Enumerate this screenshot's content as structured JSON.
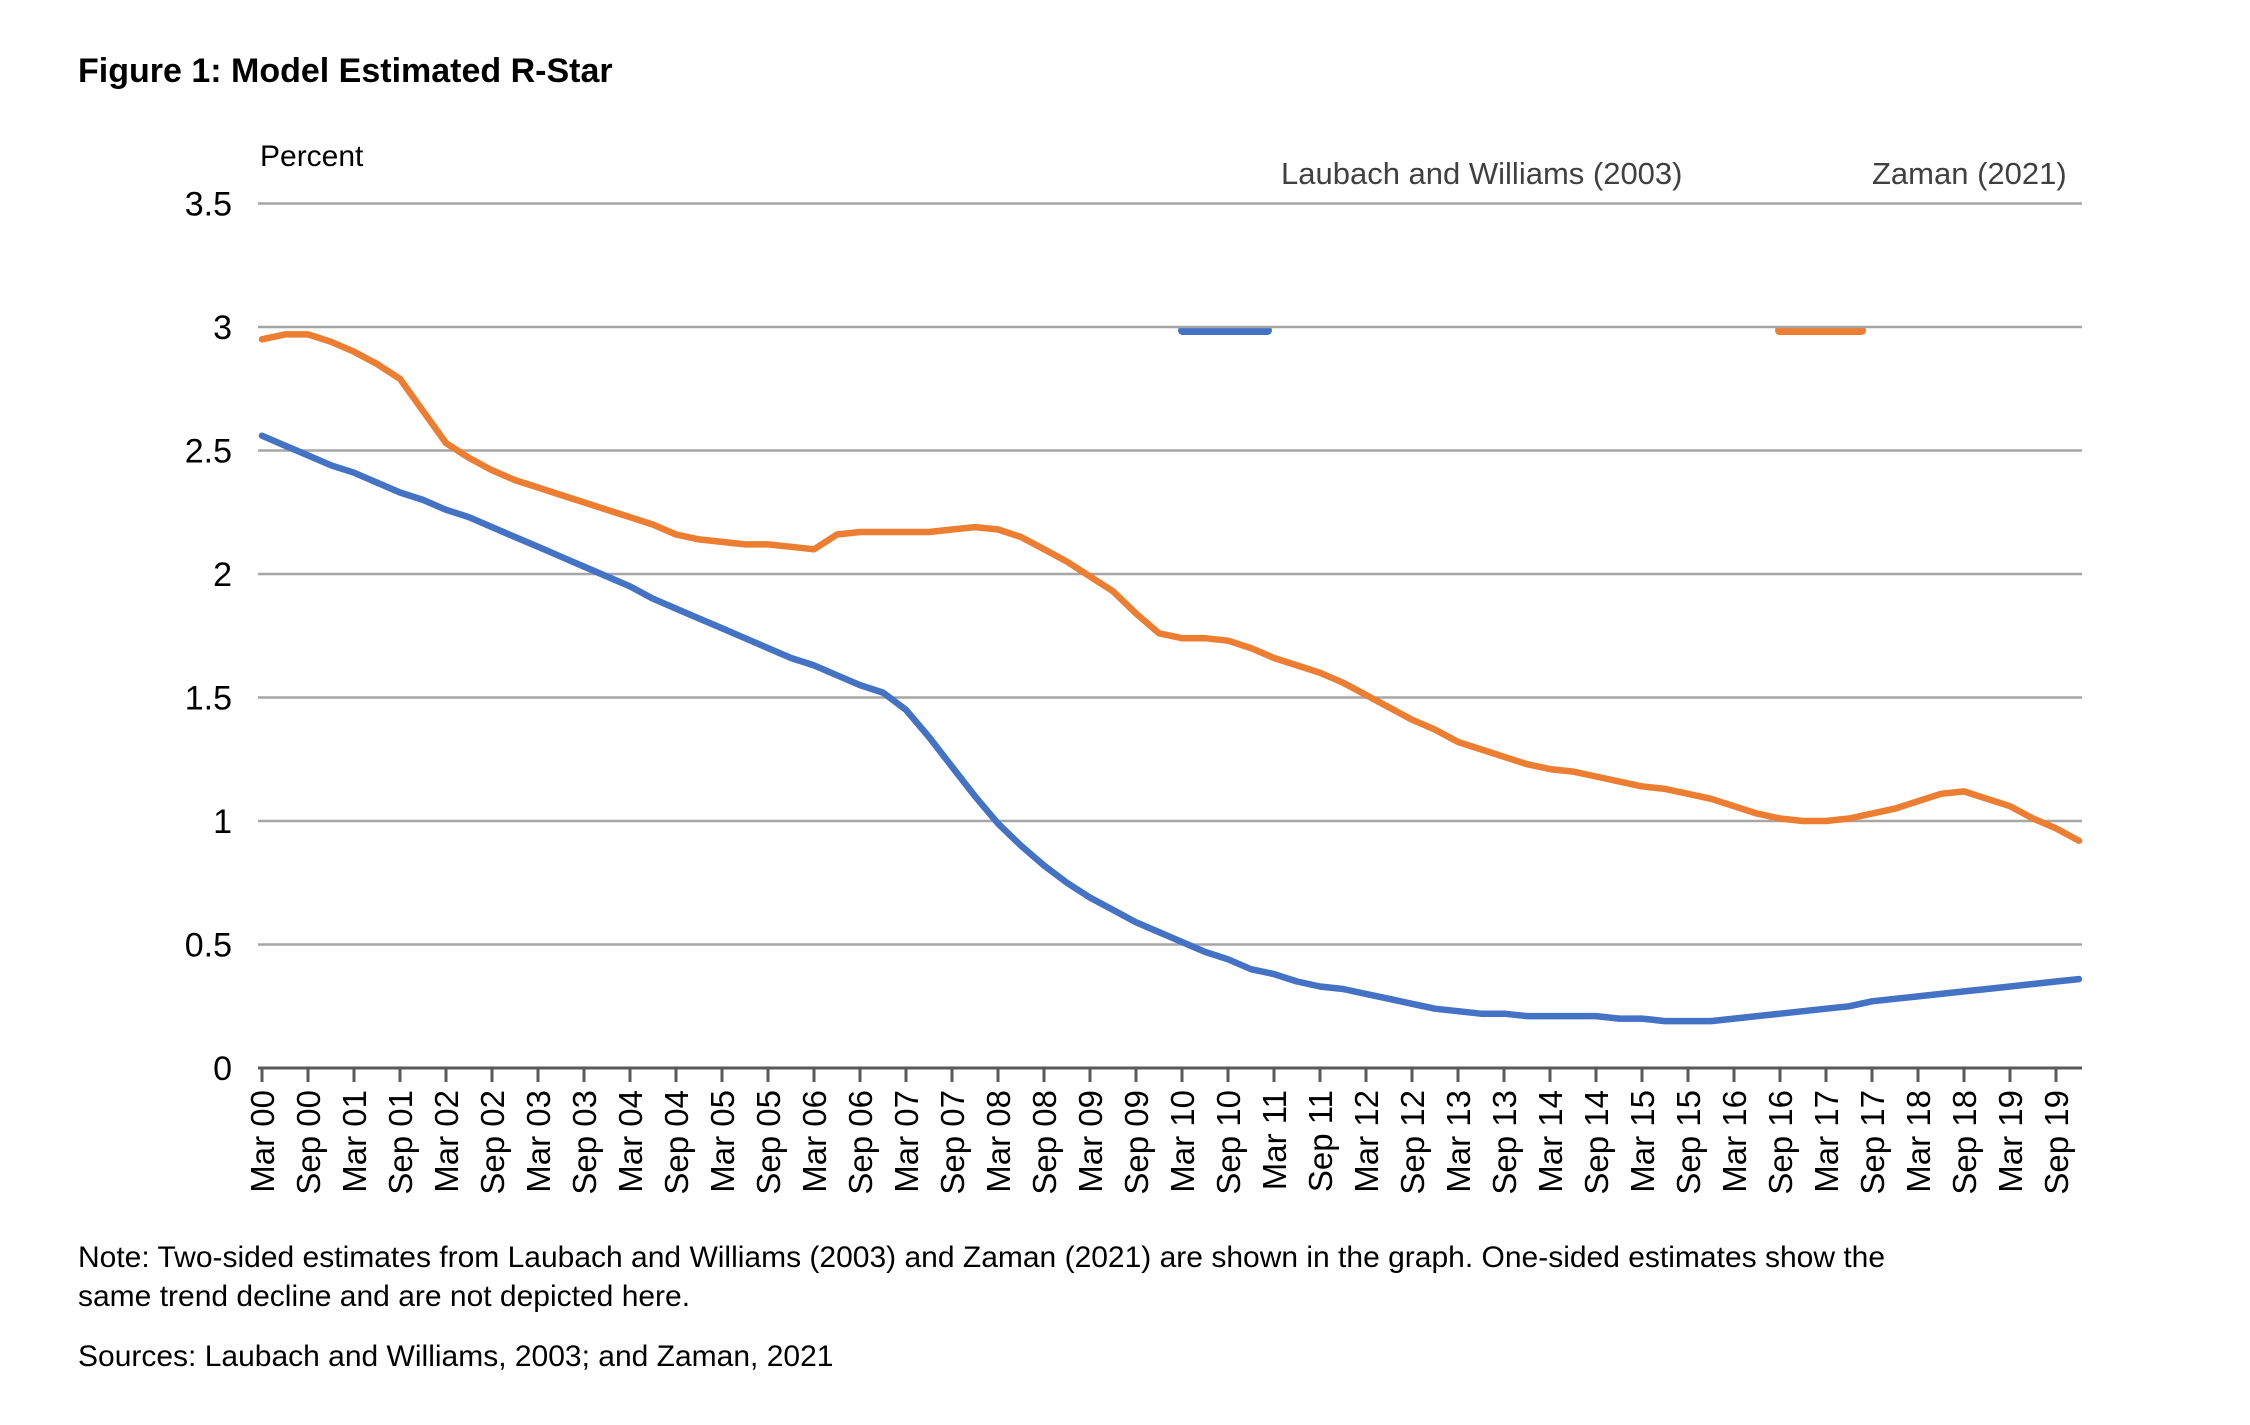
{
  "title": "Figure 1: Model Estimated R-Star",
  "note": "Note: Two-sided estimates from Laubach and Williams (2003) and Zaman (2021) are shown in the graph. One-sided estimates show the same trend decline and are not depicted here.",
  "sources": "Sources: Laubach and Williams, 2003; and Zaman, 2021",
  "chart_data": {
    "type": "line",
    "title": "Figure 1: Model Estimated R-Star",
    "ylabel": "Percent",
    "xlabel": "",
    "ylim": [
      0,
      3.5
    ],
    "y_ticks": [
      0,
      0.5,
      1,
      1.5,
      2,
      2.5,
      3,
      3.5
    ],
    "grid": true,
    "legend_position": "top-right",
    "x_frequency": "quarterly",
    "x_tick_labels": [
      "Mar 00",
      "Sep 00",
      "Mar 01",
      "Sep 01",
      "Mar 02",
      "Sep 02",
      "Mar 03",
      "Sep 03",
      "Mar 04",
      "Sep 04",
      "Mar 05",
      "Sep 05",
      "Mar 06",
      "Sep 06",
      "Mar 07",
      "Sep 07",
      "Mar 08",
      "Sep 08",
      "Mar 09",
      "Sep 09",
      "Mar 10",
      "Sep 10",
      "Mar 11",
      "Sep 11",
      "Mar 12",
      "Sep 12",
      "Mar 13",
      "Sep 13",
      "Mar 14",
      "Sep 14",
      "Mar 15",
      "Sep 15",
      "Mar 16",
      "Sep 16",
      "Mar 17",
      "Sep 17",
      "Mar 18",
      "Sep 18",
      "Mar 19",
      "Sep 19"
    ],
    "series": [
      {
        "name": "Laubach and Williams (2003)",
        "color": "#4472C4",
        "values": [
          2.56,
          2.52,
          2.48,
          2.44,
          2.41,
          2.37,
          2.33,
          2.3,
          2.26,
          2.23,
          2.19,
          2.15,
          2.11,
          2.07,
          2.03,
          1.99,
          1.95,
          1.9,
          1.86,
          1.82,
          1.78,
          1.74,
          1.7,
          1.66,
          1.63,
          1.59,
          1.55,
          1.52,
          1.45,
          1.34,
          1.22,
          1.1,
          0.99,
          0.9,
          0.82,
          0.75,
          0.69,
          0.64,
          0.59,
          0.55,
          0.51,
          0.47,
          0.44,
          0.4,
          0.38,
          0.35,
          0.33,
          0.32,
          0.3,
          0.28,
          0.26,
          0.24,
          0.23,
          0.22,
          0.22,
          0.21,
          0.21,
          0.21,
          0.21,
          0.2,
          0.2,
          0.19,
          0.19,
          0.19,
          0.2,
          0.21,
          0.22,
          0.23,
          0.24,
          0.25,
          0.27,
          0.28,
          0.29,
          0.3,
          0.31,
          0.32,
          0.33,
          0.34,
          0.35,
          0.36
        ]
      },
      {
        "name": "Zaman (2021)",
        "color": "#ED7D31",
        "values": [
          2.95,
          2.97,
          2.97,
          2.94,
          2.9,
          2.85,
          2.79,
          2.66,
          2.53,
          2.47,
          2.42,
          2.38,
          2.35,
          2.32,
          2.29,
          2.26,
          2.23,
          2.2,
          2.16,
          2.14,
          2.13,
          2.12,
          2.12,
          2.11,
          2.1,
          2.16,
          2.17,
          2.17,
          2.17,
          2.17,
          2.18,
          2.19,
          2.18,
          2.15,
          2.1,
          2.05,
          1.99,
          1.93,
          1.84,
          1.76,
          1.74,
          1.74,
          1.73,
          1.7,
          1.66,
          1.63,
          1.6,
          1.56,
          1.51,
          1.46,
          1.41,
          1.37,
          1.32,
          1.29,
          1.26,
          1.23,
          1.21,
          1.2,
          1.18,
          1.16,
          1.14,
          1.13,
          1.11,
          1.09,
          1.06,
          1.03,
          1.01,
          1.0,
          1.0,
          1.01,
          1.03,
          1.05,
          1.08,
          1.11,
          1.12,
          1.09,
          1.06,
          1.01,
          0.97,
          0.92
        ]
      }
    ]
  }
}
